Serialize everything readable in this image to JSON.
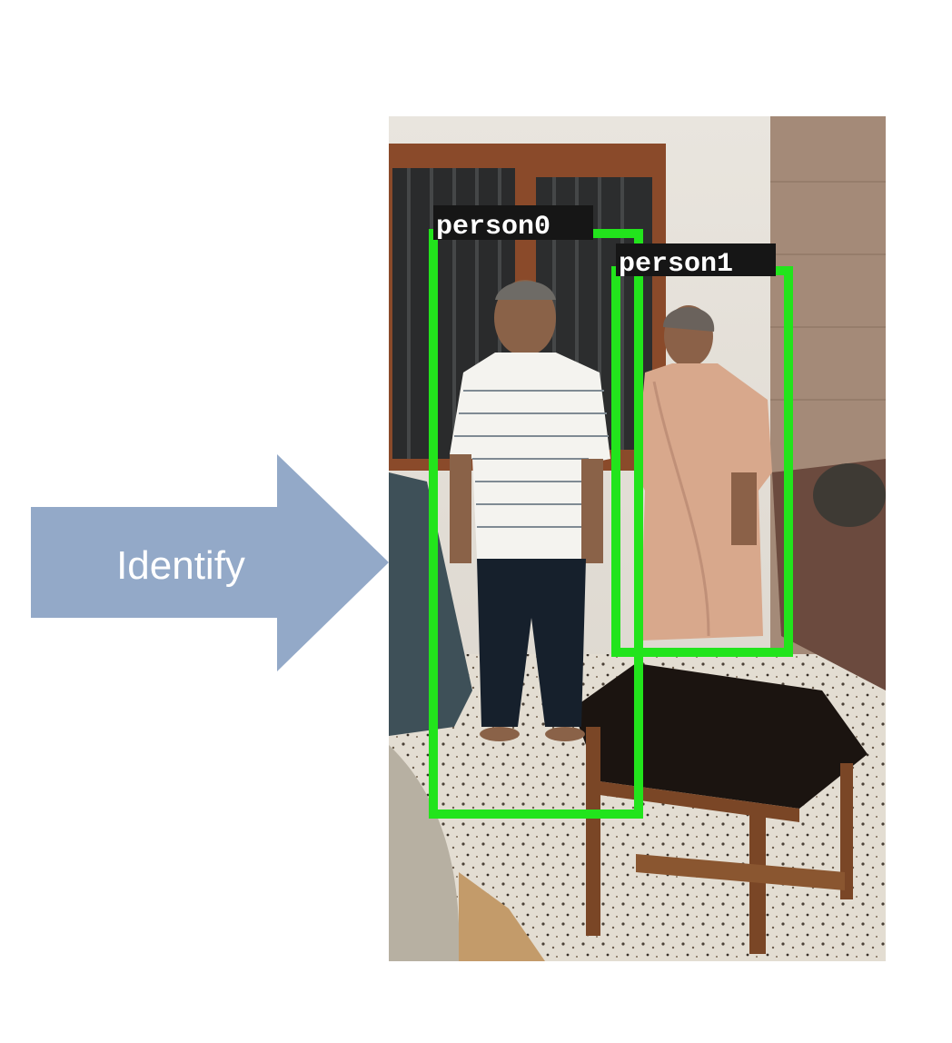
{
  "arrow": {
    "label": "Identify",
    "color": "#93a9c8"
  },
  "photo": {
    "description_icon": "living-room-photo",
    "detections": [
      {
        "label": "person0",
        "color": "#22e41c"
      },
      {
        "label": "person1",
        "color": "#22e41c"
      }
    ]
  }
}
